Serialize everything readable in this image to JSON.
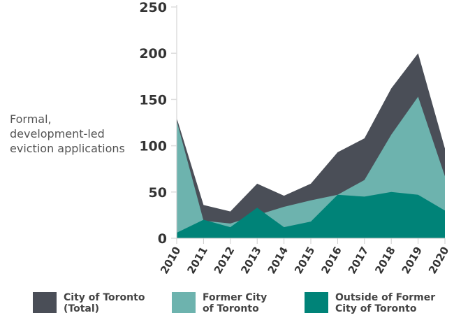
{
  "chart_data": {
    "type": "area",
    "title": "",
    "ylabel_lines": [
      "Formal,",
      "development-led",
      "eviction applications"
    ],
    "xlabel": "",
    "x": [
      "2010",
      "2011",
      "2012",
      "2013",
      "2014",
      "2015",
      "2016",
      "2017",
      "2018",
      "2019",
      "2020"
    ],
    "ylim": [
      0,
      250
    ],
    "yticks": [
      0,
      50,
      100,
      150,
      200,
      250
    ],
    "grid": false,
    "legend_position": "bottom",
    "series": [
      {
        "name": "City of Toronto (Total)",
        "legend_lines": [
          "City of Toronto",
          "(Total)"
        ],
        "color": "#4a4e57",
        "values": [
          130,
          36,
          29,
          59,
          46,
          59,
          93,
          108,
          162,
          200,
          97
        ]
      },
      {
        "name": "Former City of Toronto",
        "legend_lines": [
          "Former City",
          "of Toronto"
        ],
        "color": "#6db3ae",
        "values": [
          127,
          19,
          16,
          25,
          34,
          41,
          47,
          63,
          112,
          153,
          67
        ]
      },
      {
        "name": "Outside of Former City of Toronto",
        "legend_lines": [
          "Outside of Former",
          "City of Toronto"
        ],
        "color": "#008378",
        "values": [
          6,
          20,
          12,
          33,
          12,
          18,
          47,
          45,
          50,
          47,
          30
        ]
      }
    ]
  }
}
